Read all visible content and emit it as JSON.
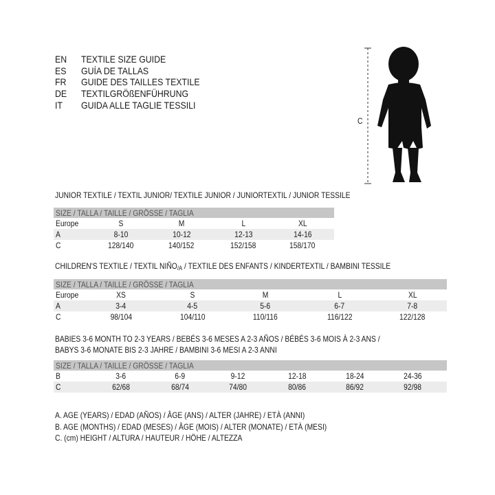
{
  "languages": [
    {
      "code": "EN",
      "text": "TEXTILE SIZE GUIDE"
    },
    {
      "code": "ES",
      "text": "GUÍA DE TALLAS"
    },
    {
      "code": "FR",
      "text": "GUIDE DES TAILLES TEXTILE"
    },
    {
      "code": "DE",
      "text": "TEXTILGRÖßENFÜHRUNG"
    },
    {
      "code": "IT",
      "text": "GUIDA ALLE TAGLIE TESSILI"
    }
  ],
  "figure": {
    "measure_label": "C",
    "icon": "child-silhouette"
  },
  "junior": {
    "title": "JUNIOR TEXTILE / TEXTIL JUNIOR/ TEXTILE JUNIOR / JUNIORTEXTIL / JUNIOR TESSILE",
    "header": "SIZE / TALLA / TAILLE / GRÖSSE / TAGLIA",
    "rows": [
      {
        "label": "Europe",
        "values": [
          "S",
          "M",
          "L",
          "XL"
        ]
      },
      {
        "label": "A",
        "values": [
          "8-10",
          "10-12",
          "12-13",
          "14-16"
        ]
      },
      {
        "label": "C",
        "values": [
          "128/140",
          "140/152",
          "152/158",
          "158/170"
        ]
      }
    ]
  },
  "children": {
    "title": "CHILDREN'S TEXTILE / TEXTIL NIÑO",
    "title_sub": "/A",
    "title_rest": " / TEXTILE DES ENFANTS / KINDERTEXTIL / BAMBINI TESSILE",
    "header": "SIZE / TALLA / TAILLE / GRÖSSE / TAGLIA",
    "rows": [
      {
        "label": "Europe",
        "values": [
          "XS",
          "S",
          "M",
          "L",
          "XL"
        ]
      },
      {
        "label": "A",
        "values": [
          "3-4",
          "4-5",
          "5-6",
          "6-7",
          "7-8"
        ]
      },
      {
        "label": "C",
        "values": [
          "98/104",
          "104/110",
          "110/116",
          "116/122",
          "122/128"
        ]
      }
    ]
  },
  "babies": {
    "title_line1": "BABIES 3-6 MONTH TO 2-3 YEARS / BEBÉS 3-6 MESES A 2-3 AÑOS / BÉBÉS 3-6 MOIS À 2-3 ANS /",
    "title_line2": "BABYS 3-6 MONATE BIS 2-3 JAHRE / BAMBINI 3-6 MESI A 2-3 ANNI",
    "header": "SIZE / TALLA / TAILLE / GRÖSSE / TAGLIA",
    "rows": [
      {
        "label": "B",
        "values": [
          "3-6",
          "6-9",
          "9-12",
          "12-18",
          "18-24",
          "24-36"
        ]
      },
      {
        "label": "C",
        "values": [
          "62/68",
          "68/74",
          "74/80",
          "80/86",
          "86/92",
          "92/98"
        ]
      }
    ]
  },
  "legend": [
    "A. AGE (YEARS) / EDAD (AÑOS) / ÂGE (ANS) / ALTER (JAHRE) / ETÀ (ANNI)",
    "B. AGE (MONTHS) / EDAD (MESES) / ÂGE (MOIS) / ALTER (MONATE) / ETÀ (MESI)",
    "C. (cm) HEIGHT / ALTURA / HAUTEUR / HÖHE / ALTEZZA"
  ],
  "colors": {
    "header_bar": "#c6c6c6",
    "stripe": "#ececec",
    "text": "#1a1a1a"
  }
}
